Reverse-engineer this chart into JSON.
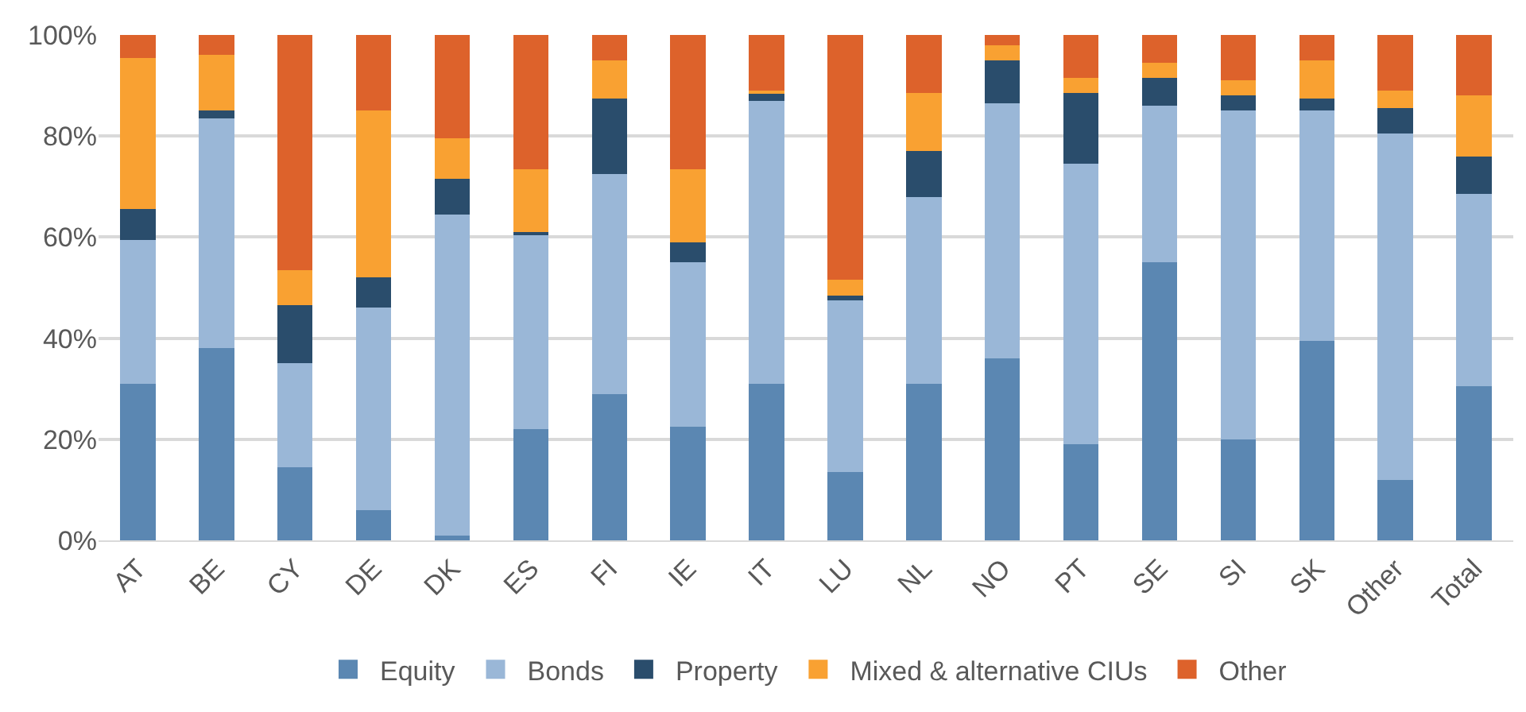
{
  "chart_data": {
    "type": "bar",
    "stacked": true,
    "categories": [
      "AT",
      "BE",
      "CY",
      "DE",
      "DK",
      "ES",
      "FI",
      "IE",
      "IT",
      "LU",
      "NL",
      "NO",
      "PT",
      "SE",
      "SI",
      "SK",
      "Other",
      "Total"
    ],
    "series": [
      {
        "name": "Equity",
        "color": "#5b87b2",
        "values": [
          31,
          38,
          14.5,
          6,
          1,
          22,
          29,
          22.5,
          31,
          13.5,
          31,
          36,
          19,
          55,
          20,
          39.5,
          12,
          30.5
        ]
      },
      {
        "name": "Bonds",
        "color": "#9ab7d7",
        "values": [
          28.5,
          45.5,
          20.5,
          40,
          63.5,
          38.5,
          43.5,
          32.5,
          56,
          34,
          37,
          50.5,
          55.5,
          31,
          65,
          45.5,
          68.5,
          38
        ]
      },
      {
        "name": "Property",
        "color": "#2a4d6c",
        "values": [
          6,
          1.5,
          11.5,
          6,
          7,
          0.5,
          15,
          4,
          1.5,
          1,
          9,
          8.5,
          14,
          5.5,
          3,
          2.5,
          5,
          7.5
        ]
      },
      {
        "name": "Mixed & alternative CIUs",
        "color": "#f9a132",
        "values": [
          30,
          11,
          7,
          33,
          8,
          12.5,
          7.5,
          14.5,
          0.5,
          3,
          11.5,
          3,
          3,
          3,
          3,
          7.5,
          3.5,
          12
        ]
      },
      {
        "name": "Other",
        "color": "#dd622b",
        "values": [
          4.5,
          4,
          46.5,
          15,
          20.5,
          26.5,
          5,
          26.5,
          11,
          48.5,
          11.5,
          2,
          8.5,
          5.5,
          9,
          5,
          11,
          12
        ]
      }
    ],
    "ylim": [
      0,
      100
    ],
    "yticks": [
      {
        "value": 0,
        "label": "0%"
      },
      {
        "value": 20,
        "label": "20%"
      },
      {
        "value": 40,
        "label": "40%"
      },
      {
        "value": 60,
        "label": "60%"
      },
      {
        "value": 80,
        "label": "80%"
      },
      {
        "value": 100,
        "label": "100%"
      }
    ],
    "grid": "y",
    "legend": "bottom"
  }
}
